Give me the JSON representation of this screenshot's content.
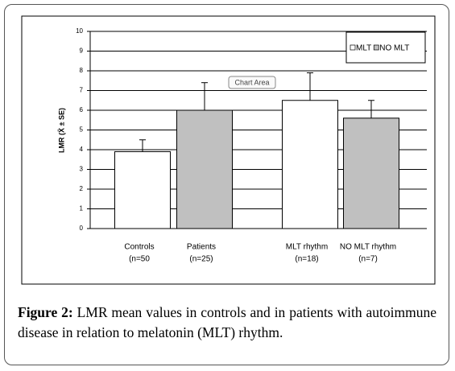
{
  "chart_data": {
    "type": "bar",
    "y_label": "LMR (X̄ ± SE)",
    "categories": [
      [
        "Controls",
        "(n=50"
      ],
      [
        "Patients",
        "(n=25)"
      ],
      [
        "MLT rhythm",
        "(n=18)"
      ],
      [
        "NO MLT rhythm",
        "(n=7)"
      ]
    ],
    "series": [
      {
        "name": "MLT",
        "color": "#ffffff",
        "values": [
          3.9,
          null,
          6.5,
          null
        ],
        "errors": [
          0.6,
          null,
          1.4,
          null
        ]
      },
      {
        "name": "NO MLT",
        "color": "#c0c0c0",
        "values": [
          null,
          6.0,
          null,
          5.6
        ],
        "errors": [
          null,
          1.4,
          null,
          0.9
        ]
      }
    ],
    "ylim": [
      0,
      10
    ],
    "yticks": [
      0,
      1,
      2,
      3,
      4,
      5,
      6,
      7,
      8,
      9,
      10
    ],
    "grid": true,
    "legend": "top-right",
    "annotation": "Chart Area"
  },
  "caption": {
    "label": "Figure 2:",
    "text": "LMR mean values in controls and in patients with autoimmune disease in relation to melatonin (MLT) rhythm."
  }
}
